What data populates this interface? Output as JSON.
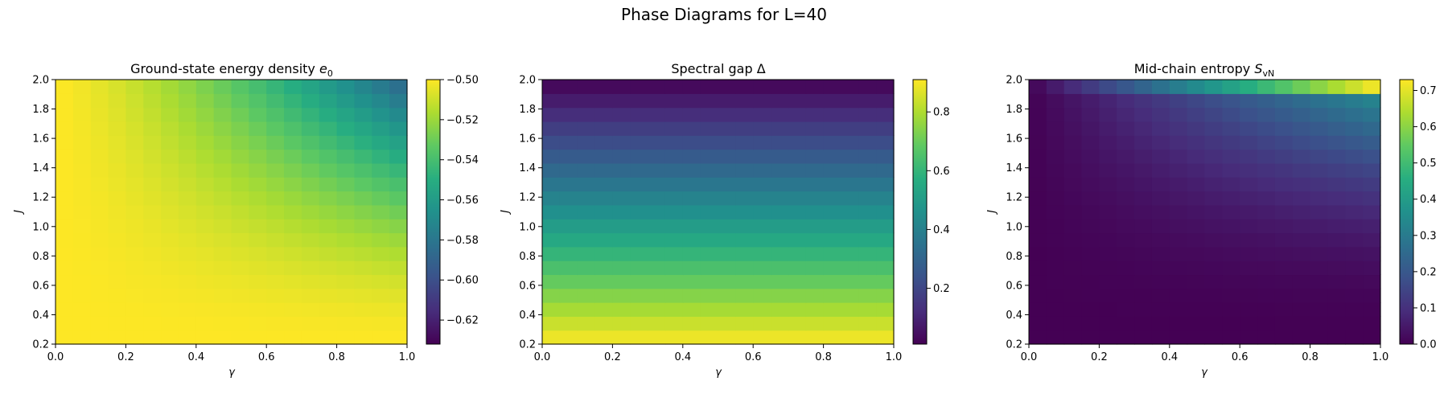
{
  "figure": {
    "suptitle": "Phase Diagrams for L=40"
  },
  "chart_data": [
    {
      "type": "heatmap",
      "title_main": "Ground-state energy density ",
      "title_symbol": "e",
      "title_sub": "0",
      "xlabel": "γ",
      "ylabel": "J",
      "xlim": [
        0,
        1
      ],
      "ylim": [
        0.2,
        2.0
      ],
      "x_ticks": [
        "0.0",
        "0.2",
        "0.4",
        "0.6",
        "0.8",
        "1.0"
      ],
      "y_ticks": [
        "0.2",
        "0.4",
        "0.6",
        "0.8",
        "1.0",
        "1.2",
        "1.4",
        "1.6",
        "1.8",
        "2.0"
      ],
      "colormap": "viridis",
      "clim": [
        -0.632,
        -0.5
      ],
      "colorbar_ticks": [
        {
          "value": -0.5,
          "label": "−0.50"
        },
        {
          "value": -0.52,
          "label": "−0.52"
        },
        {
          "value": -0.54,
          "label": "−0.54"
        },
        {
          "value": -0.56,
          "label": "−0.56"
        },
        {
          "value": -0.58,
          "label": "−0.58"
        },
        {
          "value": -0.6,
          "label": "−0.60"
        },
        {
          "value": -0.62,
          "label": "−0.62"
        }
      ],
      "grid": {
        "nx": 20,
        "ny": 19,
        "model": "e0",
        "formula": "-0.5 - 0.035*g^1.4*(J-0.2)^1.6 (approx. read from color)"
      }
    },
    {
      "type": "heatmap",
      "title_main": "Spectral gap Δ",
      "xlabel": "γ",
      "ylabel": "J",
      "xlim": [
        0,
        1
      ],
      "ylim": [
        0.2,
        2.0
      ],
      "x_ticks": [
        "0.0",
        "0.2",
        "0.4",
        "0.6",
        "0.8",
        "1.0"
      ],
      "y_ticks": [
        "0.2",
        "0.4",
        "0.6",
        "0.8",
        "1.0",
        "1.2",
        "1.4",
        "1.6",
        "1.8",
        "2.0"
      ],
      "colormap": "viridis",
      "clim": [
        0.01,
        0.91
      ],
      "colorbar_ticks": [
        {
          "value": 0.2,
          "label": "0.2"
        },
        {
          "value": 0.4,
          "label": "0.4"
        },
        {
          "value": 0.6,
          "label": "0.6"
        },
        {
          "value": 0.8,
          "label": "0.8"
        }
      ],
      "grid": {
        "nx": 20,
        "ny": 19,
        "model": "gap",
        "formula": "0.91 - 0.5*(J-0.2) (depends on J only)"
      }
    },
    {
      "type": "heatmap",
      "title_main": "Mid-chain entropy ",
      "title_symbol": "S",
      "title_sub": "vN",
      "xlabel": "γ",
      "ylabel": "J",
      "xlim": [
        0,
        1
      ],
      "ylim": [
        0.2,
        2.0
      ],
      "x_ticks": [
        "0.0",
        "0.2",
        "0.4",
        "0.6",
        "0.8",
        "1.0"
      ],
      "y_ticks": [
        "0.2",
        "0.4",
        "0.6",
        "0.8",
        "1.0",
        "1.2",
        "1.4",
        "1.6",
        "1.8",
        "2.0"
      ],
      "colormap": "viridis",
      "clim": [
        0.0,
        0.73
      ],
      "colorbar_ticks": [
        {
          "value": 0.0,
          "label": "0.0"
        },
        {
          "value": 0.1,
          "label": "0.1"
        },
        {
          "value": 0.2,
          "label": "0.2"
        },
        {
          "value": 0.3,
          "label": "0.3"
        },
        {
          "value": 0.4,
          "label": "0.4"
        },
        {
          "value": 0.5,
          "label": "0.5"
        },
        {
          "value": 0.6,
          "label": "0.6"
        },
        {
          "value": 0.7,
          "label": "0.7"
        }
      ],
      "grid": {
        "nx": 20,
        "ny": 19,
        "model": "svn",
        "formula": "top row ~0.73*g, below ~0.35*g*((J-0.2)/1.7)^2.2"
      }
    }
  ]
}
